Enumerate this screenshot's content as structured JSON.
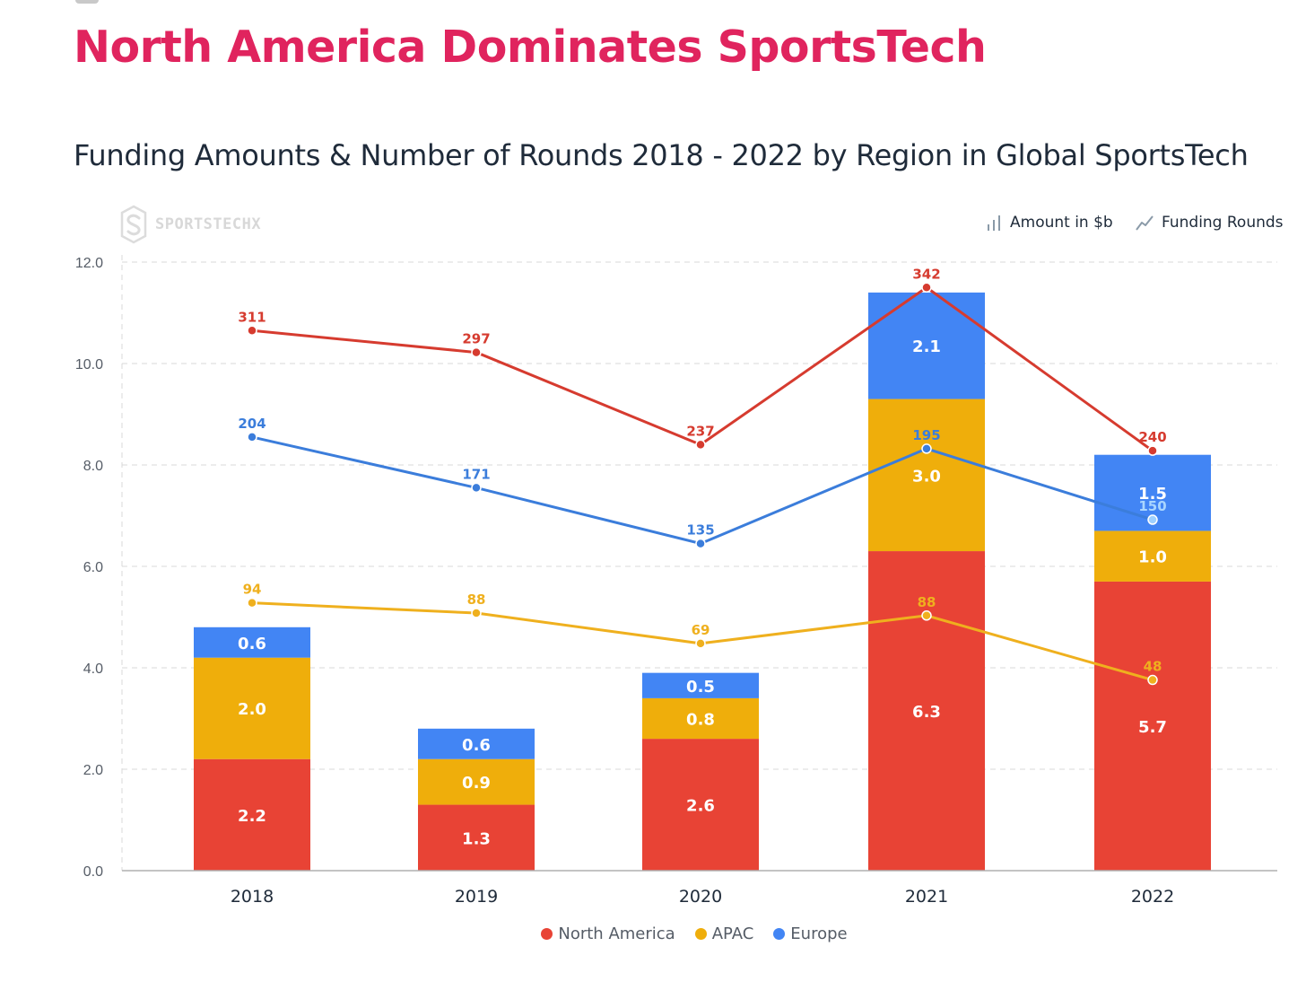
{
  "page": {
    "title": "North America Dominates SportsTech",
    "title_color": "#e0245e",
    "subtitle": "Funding Amounts & Number of Rounds 2018 - 2022 by Region in Global SportsTech"
  },
  "brand": {
    "name": "SPORTSTECHX",
    "icon": "sportstechx-logo-icon"
  },
  "toggles": {
    "amount_label": "Amount in $b",
    "amount_icon": "bar-chart-icon",
    "rounds_label": "Funding Rounds",
    "rounds_icon": "line-chart-icon"
  },
  "legend": {
    "items": [
      {
        "label": "North America",
        "color": "#e84335"
      },
      {
        "label": "APAC",
        "color": "#efae0b"
      },
      {
        "label": "Europe",
        "color": "#4285f4"
      }
    ]
  },
  "chart_data": {
    "type": "bar",
    "stacked": true,
    "categories": [
      "2018",
      "2019",
      "2020",
      "2021",
      "2022"
    ],
    "ylim": [
      0,
      12
    ],
    "yticks": [
      "0.0",
      "2.0",
      "4.0",
      "6.0",
      "8.0",
      "10.0",
      "12.0"
    ],
    "grid": true,
    "legend_position": "bottom",
    "series": [
      {
        "name": "North America",
        "color": "#e84335",
        "values": [
          2.2,
          1.3,
          2.6,
          6.3,
          5.7
        ],
        "labels": [
          "2.2",
          "1.3",
          "2.6",
          "6.3",
          "5.7"
        ]
      },
      {
        "name": "APAC",
        "color": "#efae0b",
        "values": [
          2.0,
          0.9,
          0.8,
          3.0,
          1.0
        ],
        "labels": [
          "2.0",
          "0.9",
          "0.8",
          "3.0",
          "1.0"
        ]
      },
      {
        "name": "Europe",
        "color": "#4285f4",
        "values": [
          0.6,
          0.6,
          0.5,
          2.1,
          1.5
        ],
        "labels": [
          "0.6",
          "0.6",
          "0.5",
          "2.1",
          "1.5"
        ]
      }
    ],
    "line_series": [
      {
        "name": "North America",
        "color": "#d63b2f",
        "rounds": [
          311,
          297,
          237,
          342,
          240
        ],
        "position": [
          10.65,
          10.22,
          8.4,
          11.5,
          8.28
        ]
      },
      {
        "name": "Europe",
        "color": "#3b7ddb",
        "rounds": [
          204,
          171,
          135,
          195,
          150
        ],
        "position": [
          8.55,
          7.55,
          6.45,
          8.32,
          6.92
        ]
      },
      {
        "name": "APAC",
        "color": "#efb01e",
        "rounds": [
          94,
          88,
          69,
          88,
          48
        ],
        "position": [
          5.28,
          5.08,
          4.48,
          5.03,
          3.76
        ]
      }
    ]
  }
}
